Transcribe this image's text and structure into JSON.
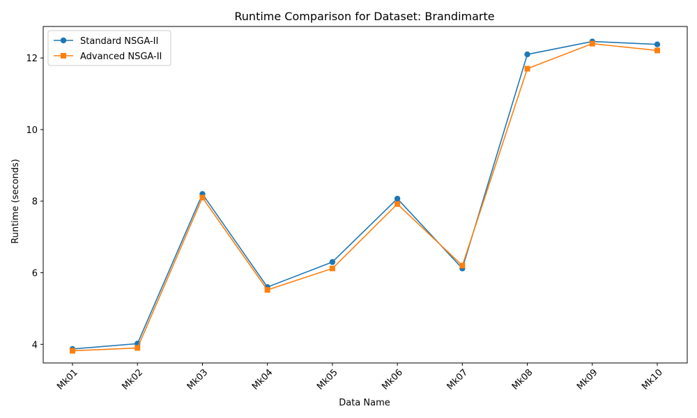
{
  "chart_data": {
    "type": "line",
    "title": "Runtime Comparison for Dataset: Brandimarte",
    "xlabel": "Data Name",
    "ylabel": "Runtime (seconds)",
    "categories": [
      "Mk01",
      "Mk02",
      "Mk03",
      "Mk04",
      "Mk05",
      "Mk06",
      "Mk07",
      "Mk08",
      "Mk09",
      "Mk10"
    ],
    "ylim": [
      3.48,
      12.88
    ],
    "yticks": [
      4,
      6,
      8,
      10,
      12
    ],
    "yticks_labels": [
      "4",
      "6",
      "8",
      "10",
      "12"
    ],
    "grid": false,
    "legend_position": "upper-left",
    "series": [
      {
        "name": "Standard NSGA-II",
        "marker": "circle",
        "color": "#1f77b4",
        "values": [
          3.87,
          4.02,
          8.2,
          5.6,
          6.3,
          8.07,
          6.12,
          12.1,
          12.46,
          12.38
        ]
      },
      {
        "name": "Advanced NSGA-II",
        "marker": "square",
        "color": "#ff7f0e",
        "values": [
          3.82,
          3.9,
          8.1,
          5.52,
          6.12,
          7.92,
          6.2,
          11.7,
          12.4,
          12.21
        ]
      }
    ]
  }
}
